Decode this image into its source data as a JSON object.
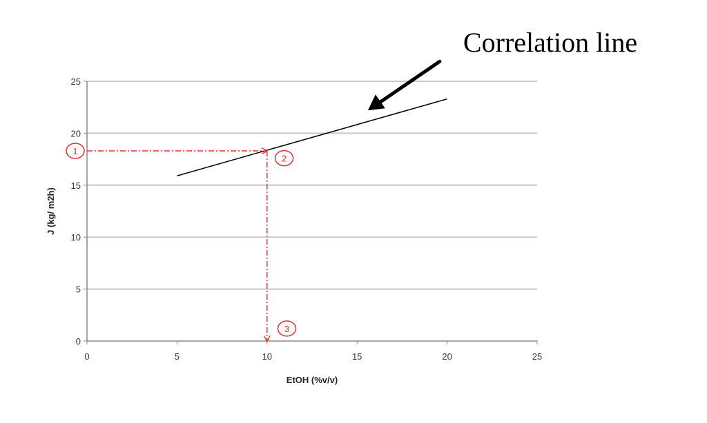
{
  "chart_data": {
    "type": "line",
    "xlabel": "EtOH (%v/v)",
    "ylabel": "J (kg/ m2h)",
    "xlim": [
      0,
      25
    ],
    "ylim": [
      0,
      25
    ],
    "x_ticks": [
      "0",
      "5",
      "10",
      "15",
      "20",
      "25"
    ],
    "y_ticks": [
      "0",
      "5",
      "10",
      "15",
      "20",
      "25"
    ],
    "grid": true,
    "series": [
      {
        "x": [
          5,
          20
        ],
        "y": [
          15.9,
          23.3
        ],
        "color": "#000000"
      }
    ],
    "guide_path": {
      "color": "#e8312f",
      "points": [
        [
          0,
          18.3
        ],
        [
          10,
          18.3
        ],
        [
          10,
          0
        ]
      ]
    },
    "markers": [
      {
        "label": "1",
        "x": -0.65,
        "y": 18.3
      },
      {
        "label": "2",
        "x": 10.95,
        "y": 17.6
      },
      {
        "label": "3",
        "x": 11.1,
        "y": 1.2
      }
    ],
    "annotation": {
      "text": "Correlation line",
      "points_to": {
        "x": 15.6,
        "y": 22.2
      }
    }
  }
}
